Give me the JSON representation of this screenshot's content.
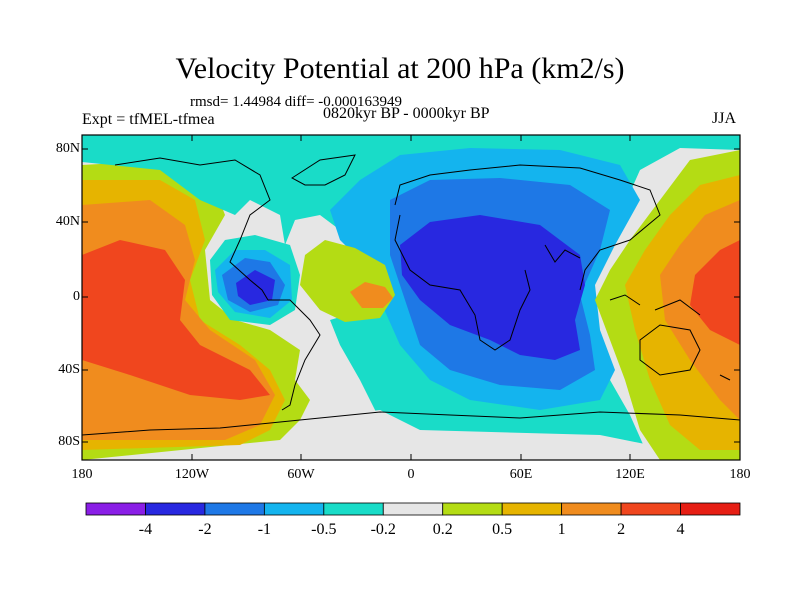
{
  "title": "Velocity Potential at 200 hPa (km2/s)",
  "stats": "rmsd= 1.44984 diff= -0.000163949",
  "experiment": "Expt = tfMEL-tfmea",
  "period": "0820kyr BP - 0000kyr BP",
  "season": "JJA",
  "map_data": {
    "type": "filled-contour-map",
    "projection": "cylindrical-equidistant",
    "lon_range": [
      -180,
      180
    ],
    "lat_range": [
      -90,
      90
    ],
    "lat_ticks": [
      "80N",
      "40N",
      "0",
      "40S",
      "80S"
    ],
    "lon_ticks": [
      "180",
      "120W",
      "60W",
      "0",
      "60E",
      "120E",
      "180"
    ],
    "colorbar": {
      "labels": [
        "-4",
        "-2",
        "-1",
        "-0.5",
        "-0.2",
        "0.2",
        "0.5",
        "1",
        "2",
        "4"
      ],
      "colors": [
        "#8a1ee6",
        "#2828e0",
        "#1e78e6",
        "#14b4ee",
        "#19dcc8",
        "#e6e6e6",
        "#b4dc14",
        "#e6b400",
        "#f08c1e",
        "#f0461e",
        "#e61e14"
      ]
    }
  }
}
